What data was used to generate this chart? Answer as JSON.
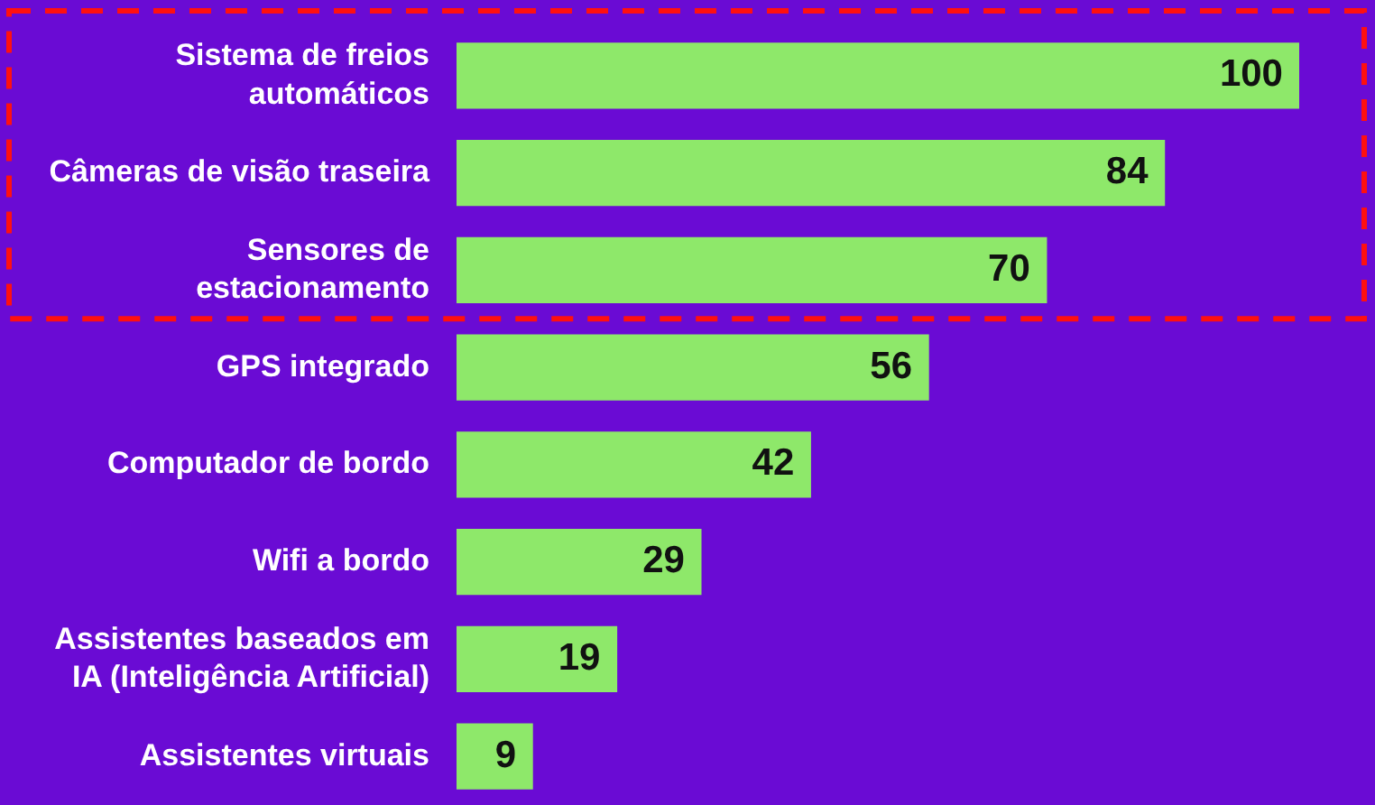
{
  "chart_data": {
    "type": "bar",
    "orientation": "horizontal",
    "categories": [
      "Sistema de freios automáticos",
      "Câmeras de visão traseira",
      "Sensores de estacionamento",
      "GPS integrado",
      "Computador de bordo",
      "Wifi a bordo",
      "Assistentes baseados em IA (Inteligência Artificial)",
      "Assistentes virtuais"
    ],
    "values": [
      100,
      84,
      70,
      56,
      42,
      29,
      19,
      9
    ],
    "color": "#8ee86a",
    "data_labels": true
  }
}
